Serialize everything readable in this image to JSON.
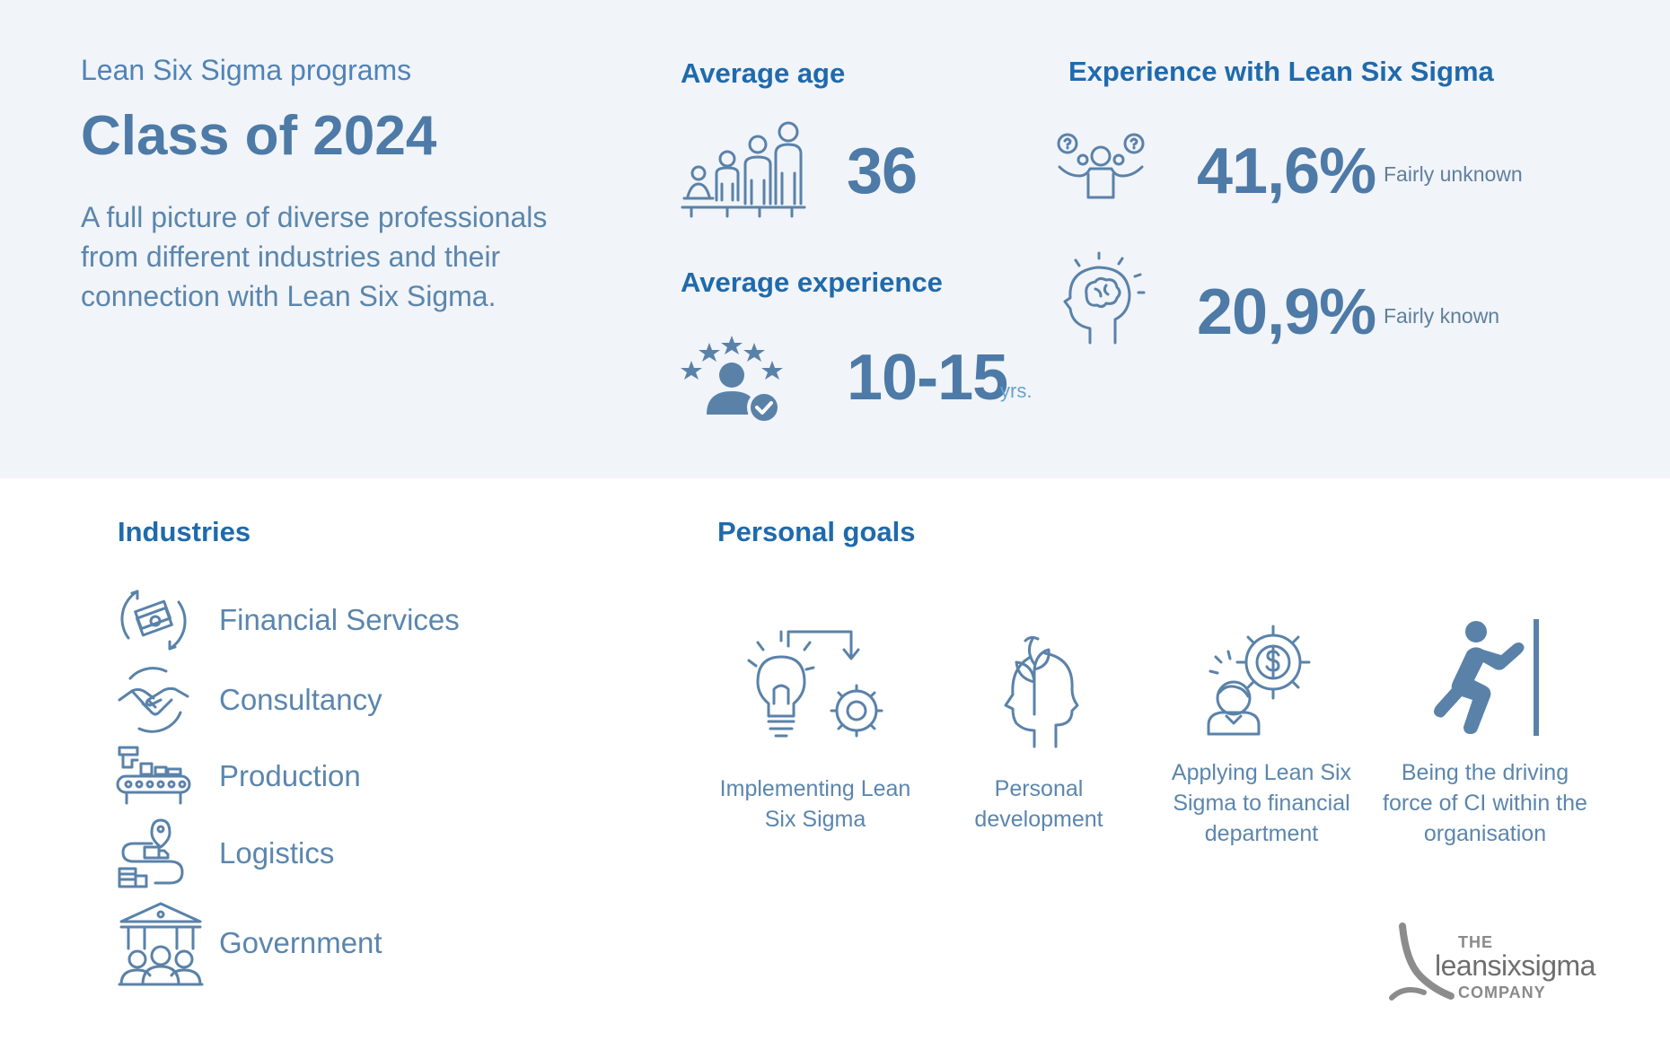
{
  "header": {
    "subtitle": "Lean Six Sigma programs",
    "title": "Class of 2024",
    "intro": "A full picture of diverse professionals from different industries and their connection with Lean Six Sigma."
  },
  "average_age": {
    "heading": "Average age",
    "value": "36",
    "icon": "age-growth-icon"
  },
  "average_experience": {
    "heading": "Average experience",
    "value": "10-15",
    "unit": "yrs.",
    "icon": "rated-person-icon"
  },
  "experience_lss": {
    "heading": "Experience with Lean Six Sigma",
    "items": [
      {
        "value": "41,6%",
        "label": "Fairly unknown",
        "icon": "confused-person-icon"
      },
      {
        "value": "20,9%",
        "label": "Fairly known",
        "icon": "head-brain-icon"
      }
    ]
  },
  "industries": {
    "heading": "Industries",
    "items": [
      {
        "label": "Financial Services",
        "icon": "money-cycle-icon"
      },
      {
        "label": "Consultancy",
        "icon": "handshake-icon"
      },
      {
        "label": "Production",
        "icon": "conveyor-icon"
      },
      {
        "label": "Logistics",
        "icon": "delivery-route-icon"
      },
      {
        "label": "Government",
        "icon": "government-building-icon"
      }
    ]
  },
  "personal_goals": {
    "heading": "Personal goals",
    "items": [
      {
        "label": "Implementing Lean Six Sigma",
        "icon": "bulb-gear-icon"
      },
      {
        "label": "Personal development",
        "icon": "head-plant-icon"
      },
      {
        "label": "Applying Lean Six Sigma to financial department",
        "icon": "person-dollar-gear-icon"
      },
      {
        "label": "Being the driving force of CI within the organisation",
        "icon": "pushing-wall-icon"
      }
    ]
  },
  "logo": {
    "line1": "THE",
    "line2": "leansixsigma",
    "line3": "COMPANY"
  },
  "colors": {
    "band_background": "#f1f4f8",
    "heading_blue": "#1f6aac",
    "text_blue": "#5b86ad",
    "value_blue": "#4d7aa6"
  }
}
